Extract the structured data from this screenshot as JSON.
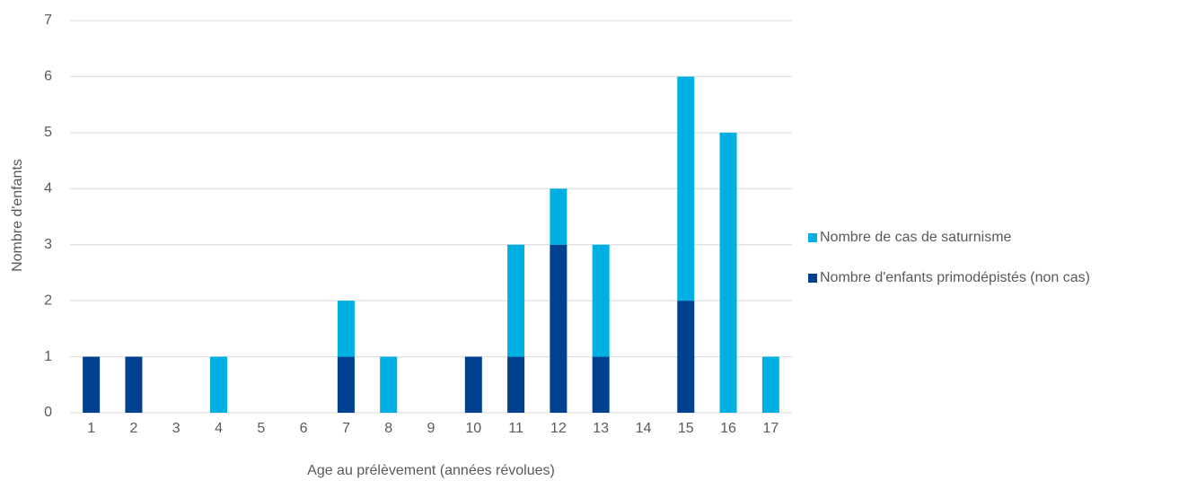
{
  "chart_data": {
    "type": "stacked_bar",
    "x_label": "Age au prélèvement (années révolues)",
    "y_label": "Nombre d'enfants",
    "categories": [
      "1",
      "2",
      "3",
      "4",
      "5",
      "6",
      "7",
      "8",
      "9",
      "10",
      "11",
      "12",
      "13",
      "14",
      "15",
      "16",
      "17"
    ],
    "series": [
      {
        "name": "Nombre d'enfants primodépistés (non cas)",
        "color": "#00418f",
        "values": [
          1,
          1,
          0,
          0,
          0,
          0,
          1,
          0,
          0,
          1,
          1,
          3,
          1,
          0,
          2,
          0,
          0
        ]
      },
      {
        "name": "Nombre de cas de saturnisme",
        "color": "#00b0e3",
        "values": [
          0,
          0,
          0,
          1,
          0,
          0,
          1,
          1,
          0,
          0,
          2,
          1,
          2,
          0,
          4,
          5,
          1
        ]
      }
    ],
    "ylim": [
      0,
      7
    ],
    "yticks": [
      0,
      1,
      2,
      3,
      4,
      5,
      6,
      7
    ],
    "grid": true,
    "legend": "right"
  }
}
